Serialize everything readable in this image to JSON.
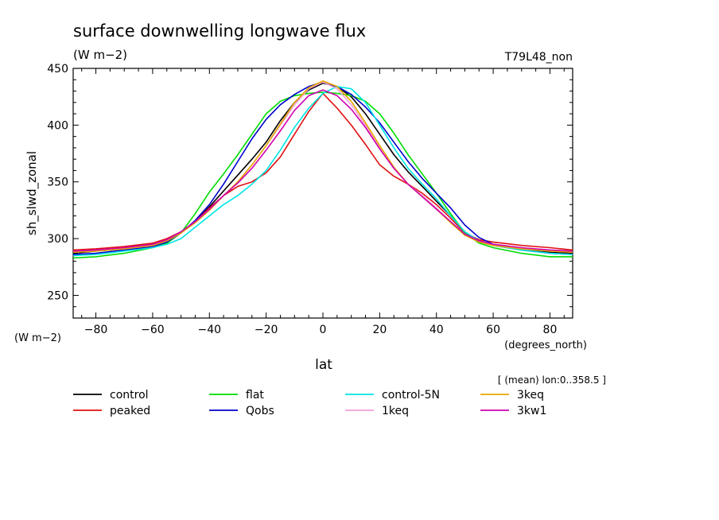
{
  "chart_data": {
    "type": "line",
    "title": "surface downwelling longwave flux",
    "subtitle": "(W m−2)",
    "run_label": "T79L48_non",
    "ylabel": "sh_slwd_zonal",
    "yunits": "(W m−2)",
    "xlabel": "lat",
    "xunits": "(degrees_north)",
    "averaging_note": "[ (mean) lon:0..358.5 ]",
    "xlim": [
      -88,
      88
    ],
    "ylim": [
      230,
      450
    ],
    "xticks": [
      -80,
      -60,
      -40,
      -20,
      0,
      20,
      40,
      60,
      80
    ],
    "yticks": [
      250,
      300,
      350,
      400,
      450
    ],
    "xtick_labels": [
      "−80",
      "−60",
      "−40",
      "−20",
      "0",
      "20",
      "40",
      "60",
      "80"
    ],
    "ytick_labels": [
      "250",
      "300",
      "350",
      "400",
      "450"
    ],
    "grid": false,
    "legend_position": "bottom",
    "x": [
      -88,
      -80,
      -70,
      -60,
      -55,
      -50,
      -45,
      -40,
      -35,
      -30,
      -25,
      -20,
      -15,
      -10,
      -5,
      0,
      5,
      10,
      15,
      20,
      25,
      30,
      35,
      40,
      45,
      50,
      55,
      60,
      70,
      80,
      88
    ],
    "series": [
      {
        "name": "control",
        "color": "#000000",
        "values": [
          287,
          289,
          291,
          294,
          298,
          305,
          315,
          328,
          342,
          356,
          370,
          385,
          404,
          420,
          431,
          437,
          434,
          425,
          410,
          392,
          374,
          359,
          346,
          333,
          320,
          306,
          298,
          294,
          290,
          288,
          287
        ]
      },
      {
        "name": "peaked",
        "color": "#e01010",
        "values": [
          290,
          291,
          293,
          296,
          300,
          306,
          315,
          327,
          338,
          346,
          350,
          358,
          372,
          392,
          412,
          428,
          415,
          400,
          383,
          365,
          355,
          348,
          340,
          330,
          318,
          305,
          299,
          297,
          294,
          292,
          290
        ]
      },
      {
        "name": "flat",
        "color": "#00dd00",
        "values": [
          283,
          284,
          287,
          292,
          296,
          305,
          322,
          341,
          357,
          374,
          392,
          410,
          421,
          426,
          428,
          429,
          428,
          426,
          421,
          410,
          393,
          374,
          357,
          340,
          322,
          305,
          296,
          292,
          287,
          284,
          284
        ]
      },
      {
        "name": "Qobs",
        "color": "#0000cc",
        "values": [
          286,
          287,
          290,
          293,
          297,
          305,
          316,
          330,
          348,
          368,
          388,
          405,
          418,
          427,
          434,
          438,
          434,
          427,
          416,
          402,
          385,
          368,
          353,
          340,
          327,
          312,
          301,
          295,
          290,
          287,
          286
        ]
      },
      {
        "name": "control-5N",
        "color": "#00e5e5",
        "values": [
          285,
          286,
          289,
          292,
          295,
          300,
          310,
          320,
          330,
          338,
          348,
          360,
          378,
          398,
          415,
          428,
          434,
          432,
          420,
          400,
          380,
          362,
          348,
          335,
          320,
          306,
          298,
          294,
          290,
          287,
          286
        ]
      },
      {
        "name": "1keq",
        "color": "#f0a0d8",
        "values": [
          288,
          289,
          291,
          294,
          298,
          305,
          314,
          325,
          338,
          350,
          365,
          382,
          400,
          418,
          432,
          438,
          432,
          418,
          400,
          380,
          362,
          348,
          338,
          327,
          315,
          303,
          297,
          294,
          291,
          289,
          288
        ]
      },
      {
        "name": "3keq",
        "color": "#e6a800",
        "values": [
          288,
          289,
          291,
          294,
          298,
          305,
          314,
          325,
          338,
          350,
          365,
          382,
          401,
          420,
          433,
          439,
          434,
          421,
          402,
          382,
          363,
          348,
          337,
          326,
          314,
          303,
          297,
          294,
          291,
          289,
          288
        ]
      },
      {
        "name": "3kw1",
        "color": "#d000b0",
        "values": [
          289,
          290,
          292,
          295,
          299,
          306,
          315,
          326,
          338,
          349,
          362,
          378,
          395,
          413,
          426,
          431,
          426,
          414,
          398,
          379,
          362,
          348,
          337,
          326,
          315,
          304,
          298,
          295,
          292,
          290,
          289
        ]
      }
    ]
  }
}
